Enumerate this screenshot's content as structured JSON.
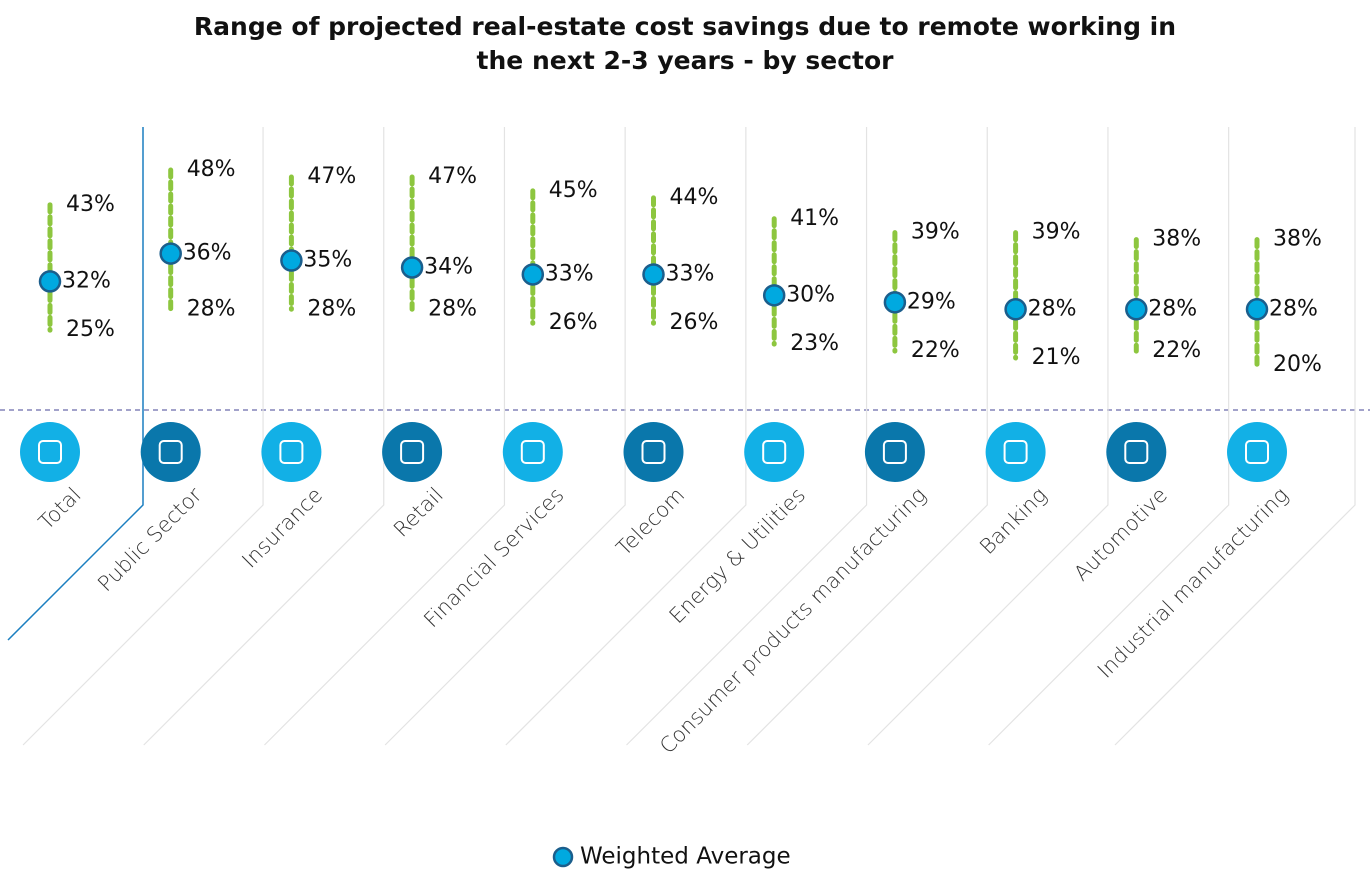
{
  "chart_data": {
    "type": "range",
    "title": "Range of projected real-estate cost savings due to remote working in the next 2-3 years - by sector",
    "categories": [
      "Total",
      "Public Sector",
      "Insurance",
      "Retail",
      "Financial Services",
      "Telecom",
      "Energy & Utilities",
      "Consumer products manufacturing",
      "Banking",
      "Automotive",
      "Industrial manufacturing"
    ],
    "high": {
      "color": "#8dc63f",
      "values": [
        43,
        48,
        47,
        47,
        45,
        44,
        41,
        39,
        39,
        38,
        38
      ],
      "value_labels": [
        "43%",
        "48%",
        "47%",
        "47%",
        "45%",
        "44%",
        "41%",
        "39%",
        "39%",
        "38%",
        "38%"
      ]
    },
    "low": {
      "color": "#8dc63f",
      "values": [
        25,
        28,
        28,
        28,
        26,
        26,
        23,
        22,
        21,
        22,
        20
      ],
      "value_labels": [
        "25%",
        "28%",
        "28%",
        "28%",
        "26%",
        "26%",
        "23%",
        "22%",
        "21%",
        "22%",
        "20%"
      ]
    },
    "average": {
      "name": "Weighted Average",
      "color": "#00a9e0",
      "values": [
        32,
        36,
        35,
        34,
        33,
        33,
        30,
        29,
        28,
        28,
        28
      ],
      "value_labels": [
        "32%",
        "36%",
        "35%",
        "34%",
        "33%",
        "33%",
        "30%",
        "29%",
        "28%",
        "28%",
        "28%"
      ]
    }
  }
}
